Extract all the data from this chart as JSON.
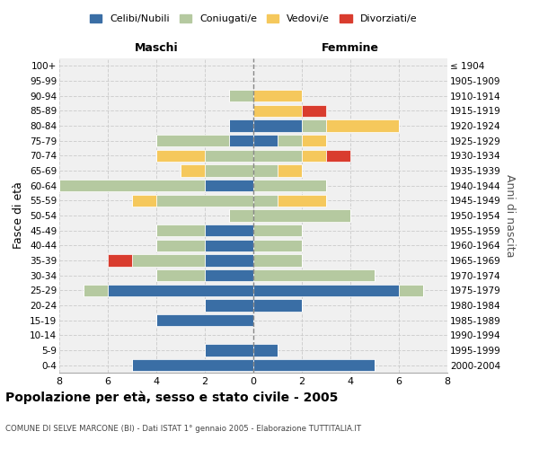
{
  "age_groups": [
    "0-4",
    "5-9",
    "10-14",
    "15-19",
    "20-24",
    "25-29",
    "30-34",
    "35-39",
    "40-44",
    "45-49",
    "50-54",
    "55-59",
    "60-64",
    "65-69",
    "70-74",
    "75-79",
    "80-84",
    "85-89",
    "90-94",
    "95-99",
    "100+"
  ],
  "birth_years": [
    "2000-2004",
    "1995-1999",
    "1990-1994",
    "1985-1989",
    "1980-1984",
    "1975-1979",
    "1970-1974",
    "1965-1969",
    "1960-1964",
    "1955-1959",
    "1950-1954",
    "1945-1949",
    "1940-1944",
    "1935-1939",
    "1930-1934",
    "1925-1929",
    "1920-1924",
    "1915-1919",
    "1910-1914",
    "1905-1909",
    "≤ 1904"
  ],
  "maschi": {
    "celibi": [
      5,
      2,
      0,
      4,
      2,
      6,
      2,
      2,
      2,
      2,
      0,
      0,
      2,
      0,
      0,
      1,
      1,
      0,
      0,
      0,
      0
    ],
    "coniugati": [
      0,
      0,
      0,
      0,
      0,
      1,
      2,
      3,
      2,
      2,
      1,
      4,
      6,
      2,
      2,
      3,
      0,
      0,
      1,
      0,
      0
    ],
    "vedovi": [
      0,
      0,
      0,
      0,
      0,
      0,
      0,
      0,
      0,
      0,
      0,
      1,
      0,
      1,
      2,
      0,
      0,
      0,
      0,
      0,
      0
    ],
    "divorziati": [
      0,
      0,
      0,
      0,
      0,
      0,
      0,
      1,
      0,
      0,
      0,
      0,
      0,
      0,
      0,
      0,
      0,
      0,
      0,
      0,
      0
    ]
  },
  "femmine": {
    "nubili": [
      5,
      1,
      0,
      0,
      2,
      6,
      0,
      0,
      0,
      0,
      0,
      0,
      0,
      0,
      0,
      1,
      2,
      0,
      0,
      0,
      0
    ],
    "coniugate": [
      0,
      0,
      0,
      0,
      0,
      1,
      5,
      2,
      2,
      2,
      4,
      1,
      3,
      1,
      2,
      1,
      1,
      0,
      0,
      0,
      0
    ],
    "vedove": [
      0,
      0,
      0,
      0,
      0,
      0,
      0,
      0,
      0,
      0,
      0,
      2,
      0,
      1,
      1,
      1,
      3,
      2,
      2,
      0,
      0
    ],
    "divorziate": [
      0,
      0,
      0,
      0,
      0,
      0,
      0,
      0,
      0,
      0,
      0,
      0,
      0,
      0,
      1,
      0,
      0,
      1,
      0,
      0,
      0
    ]
  },
  "colors": {
    "celibi": "#3A6EA5",
    "coniugati": "#B5C9A0",
    "vedovi": "#F5C85C",
    "divorziati": "#D93C2E"
  },
  "xlim": 8,
  "title": "Popolazione per età, sesso e stato civile - 2005",
  "subtitle": "COMUNE DI SELVE MARCONE (BI) - Dati ISTAT 1° gennaio 2005 - Elaborazione TUTTITALIA.IT",
  "ylabel_left": "Fasce di età",
  "ylabel_right": "Anni di nascita",
  "xlabel_maschi": "Maschi",
  "xlabel_femmine": "Femmine",
  "bg_color": "#f0f0f0",
  "grid_color": "#cccccc"
}
